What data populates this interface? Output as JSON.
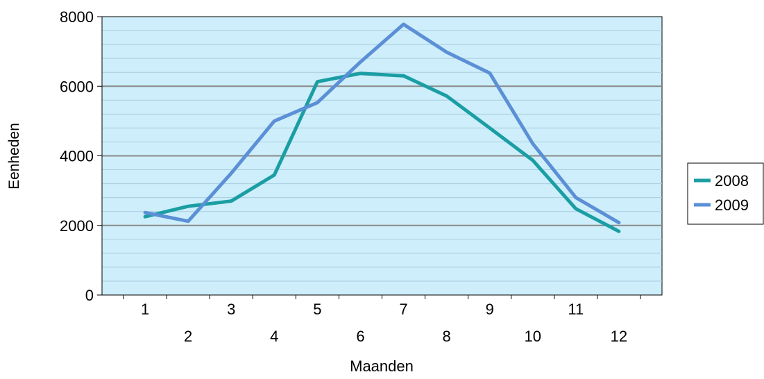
{
  "chart_data": {
    "type": "line",
    "title": "",
    "xlabel": "Maanden",
    "ylabel": "Eenheden",
    "categories": [
      "1",
      "2",
      "3",
      "4",
      "5",
      "6",
      "7",
      "8",
      "9",
      "10",
      "11",
      "12"
    ],
    "series": [
      {
        "name": "2008",
        "color": "#1a9ea4",
        "values": [
          2250,
          2550,
          2700,
          3450,
          6130,
          6370,
          6300,
          5720,
          4800,
          3870,
          2480,
          1830
        ]
      },
      {
        "name": "2009",
        "color": "#5b8fd6",
        "values": [
          2370,
          2120,
          3500,
          5000,
          5530,
          6700,
          7780,
          6980,
          6380,
          4350,
          2800,
          2080
        ]
      }
    ],
    "ylim": [
      0,
      8000
    ],
    "yticks": [
      0,
      2000,
      4000,
      6000,
      8000
    ],
    "grid": true,
    "legend_position": "right",
    "plot_background": "#cdeefa"
  }
}
